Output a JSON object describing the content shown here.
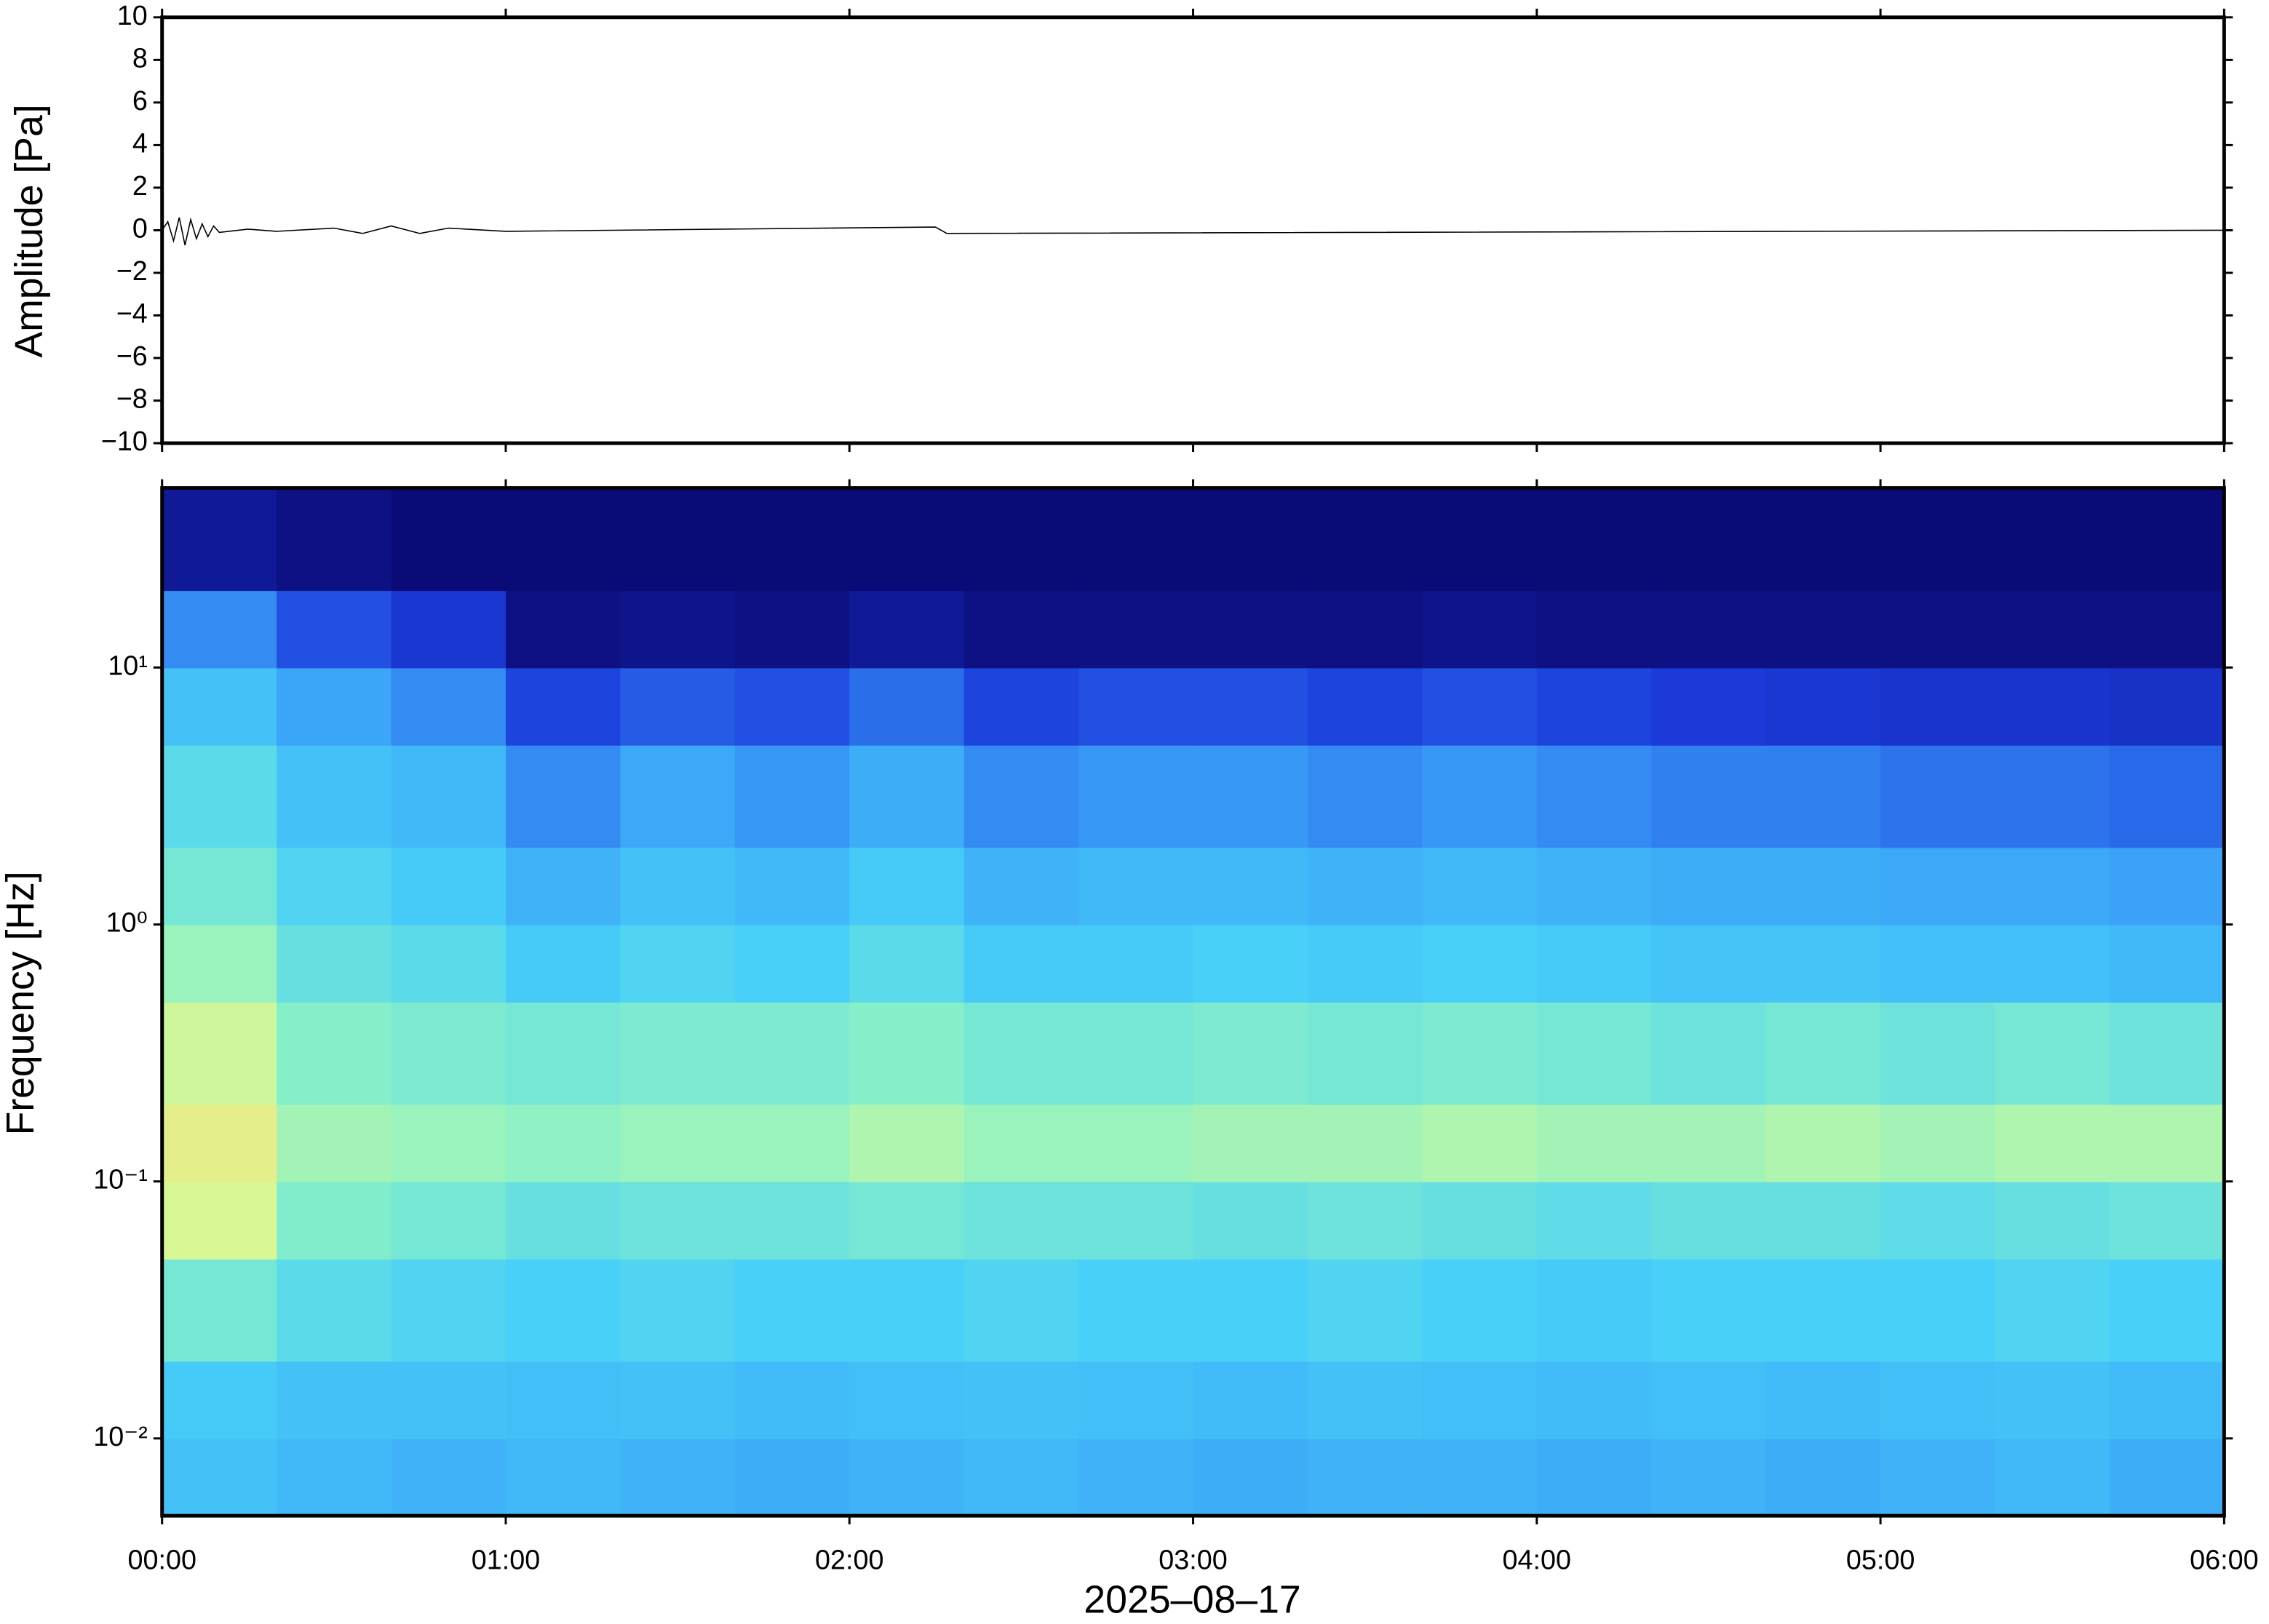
{
  "chart_data": [
    {
      "type": "line",
      "ylabel": "Amplitude [Pa]",
      "color": "#000000",
      "x": [
        0,
        1,
        2,
        3,
        4,
        5,
        6,
        7,
        8,
        9,
        10,
        15,
        20,
        30,
        35,
        40,
        45,
        50,
        60,
        135,
        137,
        360
      ],
      "values": [
        0,
        0.4,
        -0.5,
        0.6,
        -0.7,
        0.5,
        -0.4,
        0.3,
        -0.3,
        0.2,
        -0.1,
        0.05,
        -0.05,
        0.1,
        -0.15,
        0.2,
        -0.15,
        0.1,
        -0.05,
        0.15,
        -0.15,
        0
      ],
      "xlim": [
        0,
        360
      ],
      "ylim": [
        -10,
        10
      ],
      "yticks": [
        {
          "value": -10,
          "label": "−10"
        },
        {
          "value": -8,
          "label": "−8"
        },
        {
          "value": -6,
          "label": "−6"
        },
        {
          "value": -4,
          "label": "−4"
        },
        {
          "value": -2,
          "label": "−2"
        },
        0,
        2,
        4,
        6,
        8,
        10
      ]
    },
    {
      "type": "heatmap",
      "ylabel": "Frequency [Hz]",
      "xlabel": "2025–08–17",
      "log_y": true,
      "xlim": [
        0,
        360
      ],
      "xticks": [
        {
          "value": 0,
          "label": "00:00"
        },
        {
          "value": 60,
          "label": "01:00"
        },
        {
          "value": 120,
          "label": "02:00"
        },
        {
          "value": 180,
          "label": "03:00"
        },
        {
          "value": 240,
          "label": "04:00"
        },
        {
          "value": 300,
          "label": "05:00"
        },
        {
          "value": 360,
          "label": "06:00"
        }
      ],
      "ylim": [
        0.005,
        50
      ],
      "yticks": [
        {
          "value": 0.01,
          "label": "10⁻²"
        },
        {
          "value": 0.1,
          "label": "10⁻¹"
        },
        {
          "value": 1,
          "label": "10⁰"
        },
        {
          "value": 10,
          "label": "10¹"
        }
      ],
      "x_edges": [
        0,
        20,
        40,
        60,
        80,
        100,
        120,
        140,
        160,
        180,
        200,
        220,
        240,
        260,
        280,
        300,
        320,
        340,
        360
      ],
      "y_edges": [
        0.005,
        0.01,
        0.02,
        0.05,
        0.1,
        0.2,
        0.5,
        1,
        2,
        5,
        10,
        20,
        50
      ],
      "zlim": [
        0,
        1
      ],
      "colormap": [
        "#0b0b78",
        "#1c3cdc",
        "#3aa0f8",
        "#48d0f8",
        "#88f0c8",
        "#e0f890",
        "#f8c070"
      ],
      "z": [
        [
          0.45,
          0.42,
          0.4,
          0.42,
          0.4,
          0.38,
          0.4,
          0.42,
          0.4,
          0.38,
          0.4,
          0.4,
          0.38,
          0.4,
          0.38,
          0.4,
          0.42,
          0.38
        ],
        [
          0.48,
          0.45,
          0.45,
          0.44,
          0.45,
          0.43,
          0.44,
          0.45,
          0.44,
          0.43,
          0.45,
          0.44,
          0.43,
          0.44,
          0.43,
          0.44,
          0.45,
          0.43
        ],
        [
          0.62,
          0.55,
          0.52,
          0.5,
          0.52,
          0.5,
          0.5,
          0.52,
          0.5,
          0.5,
          0.52,
          0.5,
          0.48,
          0.5,
          0.5,
          0.5,
          0.52,
          0.5
        ],
        [
          0.82,
          0.65,
          0.62,
          0.58,
          0.6,
          0.6,
          0.62,
          0.6,
          0.6,
          0.58,
          0.6,
          0.58,
          0.56,
          0.58,
          0.58,
          0.56,
          0.58,
          0.6
        ],
        [
          0.86,
          0.72,
          0.7,
          0.68,
          0.7,
          0.7,
          0.74,
          0.7,
          0.7,
          0.72,
          0.72,
          0.74,
          0.72,
          0.72,
          0.74,
          0.72,
          0.74,
          0.74
        ],
        [
          0.8,
          0.66,
          0.64,
          0.62,
          0.64,
          0.64,
          0.66,
          0.62,
          0.62,
          0.64,
          0.62,
          0.64,
          0.62,
          0.6,
          0.62,
          0.6,
          0.62,
          0.6
        ],
        [
          0.7,
          0.58,
          0.55,
          0.48,
          0.52,
          0.5,
          0.55,
          0.48,
          0.48,
          0.5,
          0.48,
          0.5,
          0.48,
          0.46,
          0.46,
          0.44,
          0.44,
          0.42
        ],
        [
          0.62,
          0.52,
          0.48,
          0.4,
          0.45,
          0.42,
          0.48,
          0.4,
          0.42,
          0.42,
          0.4,
          0.42,
          0.4,
          0.38,
          0.38,
          0.36,
          0.36,
          0.34
        ],
        [
          0.55,
          0.45,
          0.42,
          0.3,
          0.36,
          0.32,
          0.38,
          0.3,
          0.32,
          0.32,
          0.3,
          0.32,
          0.3,
          0.28,
          0.28,
          0.26,
          0.26,
          0.24
        ],
        [
          0.45,
          0.35,
          0.3,
          0.18,
          0.22,
          0.2,
          0.25,
          0.18,
          0.2,
          0.2,
          0.18,
          0.2,
          0.18,
          0.16,
          0.15,
          0.14,
          0.14,
          0.13
        ],
        [
          0.3,
          0.2,
          0.15,
          0.02,
          0.03,
          0.02,
          0.05,
          0.02,
          0.02,
          0.02,
          0.02,
          0.03,
          0.02,
          0.02,
          0.02,
          0.02,
          0.02,
          0.02
        ],
        [
          0.05,
          0.02,
          0,
          0,
          0,
          0,
          0,
          0,
          0,
          0,
          0,
          0,
          0,
          0,
          0,
          0,
          0,
          0
        ]
      ]
    }
  ]
}
